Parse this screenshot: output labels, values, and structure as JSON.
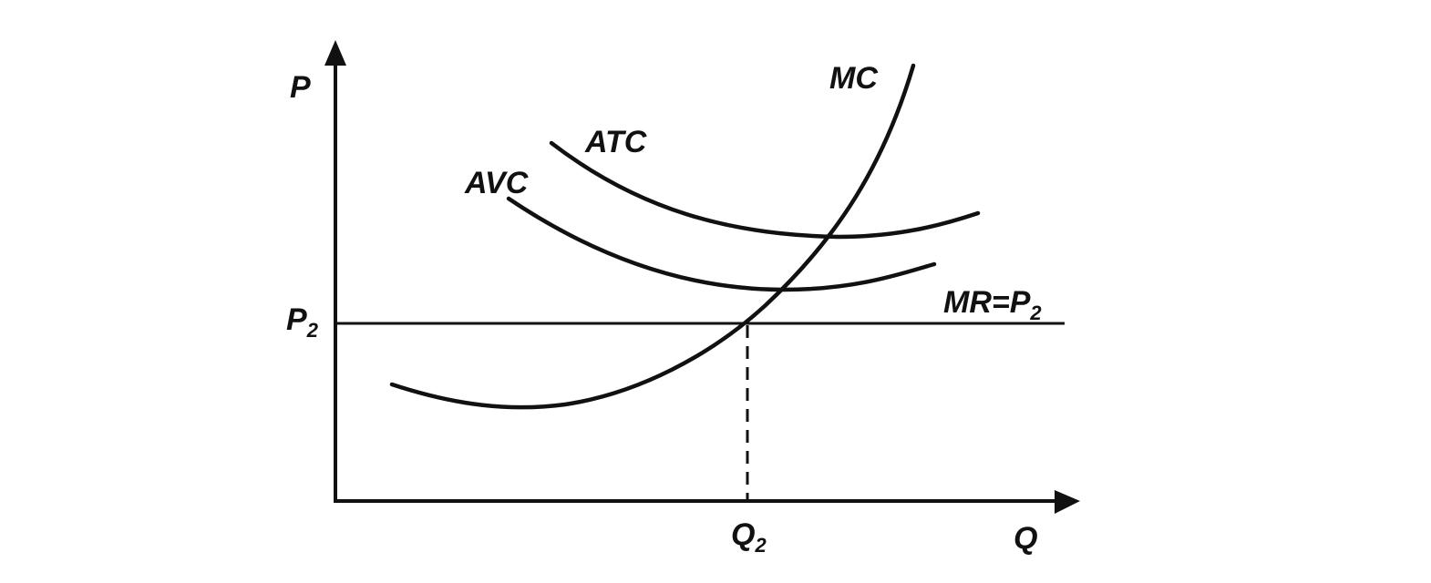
{
  "axes": {
    "y": {
      "main": "P"
    },
    "x": {
      "main": "Q"
    }
  },
  "price": {
    "main": "P",
    "sub": "2"
  },
  "quantity": {
    "main": "Q",
    "sub": "2"
  },
  "curves": {
    "mc": "MC",
    "atc": "ATC",
    "avc": "AVC",
    "mr": {
      "main": "MR=P",
      "sub": "2"
    }
  }
}
